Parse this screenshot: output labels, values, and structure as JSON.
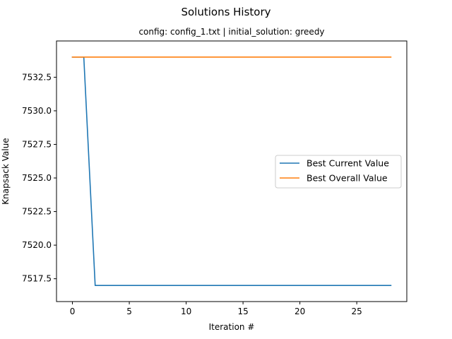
{
  "figure": {
    "suptitle": "Solutions History",
    "subtitle": "config: config_1.txt | initial_solution: greedy"
  },
  "chart_data": {
    "type": "line",
    "title": "config: config_1.txt | initial_solution: greedy",
    "xlabel": "Iteration #",
    "ylabel": "Knapsack Value",
    "xlim": [
      -1.4,
      29.4
    ],
    "ylim": [
      7515.8,
      7535.2
    ],
    "xticks": [
      0,
      5,
      10,
      15,
      20,
      25
    ],
    "yticks": [
      7517.5,
      7520.0,
      7522.5,
      7525.0,
      7527.5,
      7530.0,
      7532.5
    ],
    "ytick_labels": [
      "7517.5",
      "7520.0",
      "7522.5",
      "7525.0",
      "7527.5",
      "7530.0",
      "7532.5"
    ],
    "grid": false,
    "legend_position": "center-right",
    "series": [
      {
        "name": "Best Current Value",
        "color": "#1f77b4",
        "x": [
          0,
          1,
          2,
          28
        ],
        "y": [
          7534.0,
          7534.0,
          7517.0,
          7517.0
        ]
      },
      {
        "name": "Best Overall Value",
        "color": "#ff7f0e",
        "x": [
          0,
          28
        ],
        "y": [
          7534.0,
          7534.0
        ]
      }
    ]
  }
}
